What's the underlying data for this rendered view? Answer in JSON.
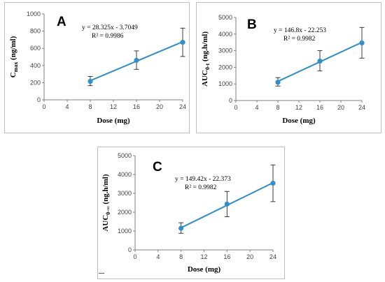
{
  "chart_data": [
    {
      "type": "scatter",
      "panel": "A",
      "x": [
        8,
        16,
        24
      ],
      "y": [
        215,
        460,
        670
      ],
      "error_low": [
        165,
        355,
        505
      ],
      "error_high": [
        272,
        570,
        835
      ],
      "xlabel": "Dose (mg)",
      "ylabel_main": "C",
      "ylabel_sub": "max",
      "ylabel_tail": " (ng/ml)",
      "xlim": [
        0,
        24
      ],
      "ylim": [
        0,
        1000
      ],
      "xticks": [
        0,
        4,
        8,
        12,
        16,
        20,
        24
      ],
      "yticks": [
        0,
        200,
        400,
        600,
        800,
        1000
      ],
      "trendline": {
        "slope": 28.325,
        "intercept": -3.7049
      },
      "equation": "y = 28.325x - 3.7049",
      "r_squared": "R² = 0.9986",
      "grid": false,
      "color": "#2e8fcb"
    },
    {
      "type": "scatter",
      "panel": "B",
      "x": [
        8,
        16,
        24
      ],
      "y": [
        1100,
        2370,
        3470
      ],
      "error_low": [
        870,
        1780,
        2550
      ],
      "error_high": [
        1380,
        3000,
        4400
      ],
      "xlabel": "Dose (mg)",
      "ylabel_main": "AUC",
      "ylabel_sub": "0-t",
      "ylabel_tail": " (ng.h/ml)",
      "xlim": [
        0,
        24
      ],
      "ylim": [
        0,
        5000
      ],
      "xticks": [
        0,
        4,
        8,
        12,
        16,
        20,
        24
      ],
      "yticks": [
        0,
        1000,
        2000,
        3000,
        4000,
        5000
      ],
      "trendline": {
        "slope": 146.8,
        "intercept": -22.253
      },
      "equation": "y = 146.8x - 22.253",
      "r_squared": "R² = 0.9982",
      "grid": false,
      "color": "#2e8fcb"
    },
    {
      "type": "scatter",
      "panel": "C",
      "x": [
        8,
        16,
        24
      ],
      "y": [
        1150,
        2430,
        3540
      ],
      "error_low": [
        880,
        1760,
        2560
      ],
      "error_high": [
        1440,
        3100,
        4510
      ],
      "xlabel": "Dose (mg)",
      "ylabel_main": "AUC",
      "ylabel_sub": "0-∞",
      "ylabel_tail": " (ng.h/ml)",
      "xlim": [
        0,
        24
      ],
      "ylim": [
        0,
        5000
      ],
      "xticks": [
        0,
        4,
        8,
        12,
        16,
        20,
        24
      ],
      "yticks": [
        0,
        1000,
        2000,
        3000,
        4000,
        5000
      ],
      "trendline": {
        "slope": 149.42,
        "intercept": -22.373
      },
      "equation": "y = 149.42x - 22.373",
      "r_squared": "R² = 0.9982",
      "grid": false,
      "color": "#2e8fcb"
    }
  ]
}
